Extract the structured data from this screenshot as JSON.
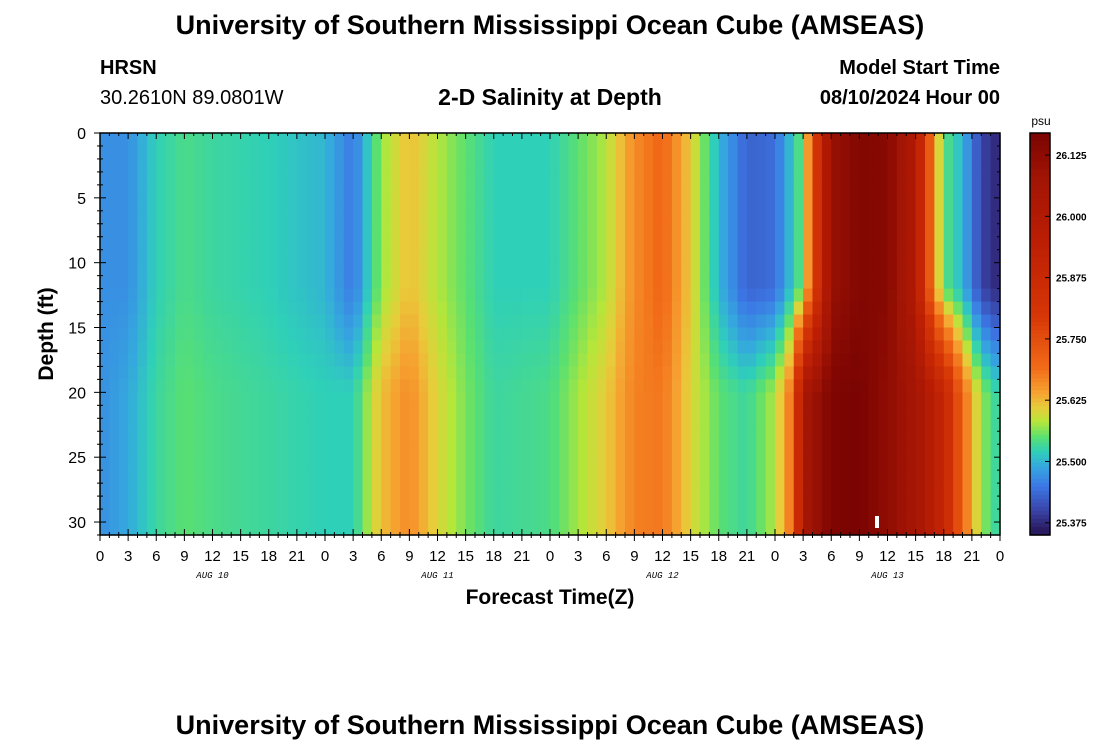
{
  "header": {
    "title": "University of Southern Mississippi Ocean Cube (AMSEAS)",
    "station": "HRSN",
    "coords": "30.2610N  89.0801W",
    "subtitle": "2-D Salinity at Depth",
    "model_start_label": "Model Start Time",
    "model_start_value": "08/10/2024 Hour 00"
  },
  "footer": {
    "title": "University of Southern Mississippi Ocean Cube (AMSEAS)"
  },
  "chart_data": {
    "type": "heatmap",
    "title": "2-D Salinity at Depth",
    "xlabel": "Forecast Time(Z)",
    "ylabel": "Depth (ft)",
    "x_unit": "hours from 08/10/2024 00Z",
    "xlim": [
      0,
      96
    ],
    "ylim": [
      0,
      31
    ],
    "y_inverted": true,
    "x_ticks": [
      "0",
      "3",
      "6",
      "9",
      "12",
      "15",
      "18",
      "21",
      "0",
      "3",
      "6",
      "9",
      "12",
      "15",
      "18",
      "21",
      "0",
      "3",
      "6",
      "9",
      "12",
      "15",
      "18",
      "21",
      "0",
      "3",
      "6",
      "9",
      "12",
      "15",
      "18",
      "21",
      "0"
    ],
    "date_labels": [
      "AUG 10",
      "AUG 11",
      "AUG 12",
      "AUG 13"
    ],
    "y_ticks": [
      "0",
      "5",
      "10",
      "15",
      "20",
      "25",
      "30"
    ],
    "colorbar": {
      "unit": "psu",
      "min": 25.35,
      "max": 26.17,
      "ticks": [
        "26.125",
        "26.000",
        "25.875",
        "25.750",
        "25.625",
        "25.500",
        "25.375"
      ]
    },
    "surface_salinity_psu": {
      "hours": [
        0,
        3,
        6,
        9,
        12,
        18,
        24,
        27,
        30,
        33,
        36,
        39,
        42,
        48,
        54,
        57,
        60,
        63,
        66,
        69,
        72,
        75,
        78,
        81,
        84,
        87,
        88,
        89,
        90,
        92,
        94,
        96
      ],
      "values": [
        25.47,
        25.47,
        25.52,
        25.54,
        25.53,
        25.52,
        25.5,
        25.45,
        25.57,
        25.62,
        25.58,
        25.55,
        25.52,
        25.52,
        25.58,
        25.66,
        25.7,
        25.61,
        25.5,
        25.43,
        25.44,
        25.56,
        26.1,
        26.15,
        26.14,
        26.0,
        25.8,
        25.65,
        25.55,
        25.5,
        25.4,
        25.37
      ]
    },
    "bottom_salinity_psu": {
      "hours": [
        0,
        3,
        6,
        9,
        12,
        18,
        24,
        27,
        30,
        33,
        36,
        39,
        42,
        48,
        54,
        57,
        60,
        63,
        66,
        69,
        72,
        74,
        75,
        78,
        81,
        84,
        87,
        90,
        92,
        94,
        96
      ],
      "values": [
        25.47,
        25.49,
        25.53,
        25.55,
        25.54,
        25.53,
        25.52,
        25.52,
        25.62,
        25.66,
        25.6,
        25.56,
        25.53,
        25.54,
        25.61,
        25.67,
        25.68,
        25.6,
        25.55,
        25.53,
        25.58,
        25.7,
        26.05,
        26.16,
        26.17,
        26.12,
        26.06,
        25.9,
        25.7,
        25.57,
        25.52
      ]
    },
    "color_stops": [
      {
        "v": 25.36,
        "c": "#2a1a60"
      },
      {
        "v": 25.4,
        "c": "#3a44a8"
      },
      {
        "v": 25.45,
        "c": "#3c78e6"
      },
      {
        "v": 25.49,
        "c": "#35a8de"
      },
      {
        "v": 25.52,
        "c": "#2fd0b8"
      },
      {
        "v": 25.55,
        "c": "#5ae070"
      },
      {
        "v": 25.58,
        "c": "#b5e63a"
      },
      {
        "v": 25.61,
        "c": "#e8cc3a"
      },
      {
        "v": 25.64,
        "c": "#f6a231"
      },
      {
        "v": 25.69,
        "c": "#f26b18"
      },
      {
        "v": 25.8,
        "c": "#d63606"
      },
      {
        "v": 25.95,
        "c": "#bb1e04"
      },
      {
        "v": 26.08,
        "c": "#a11404"
      },
      {
        "v": 26.17,
        "c": "#7a0402"
      }
    ]
  }
}
